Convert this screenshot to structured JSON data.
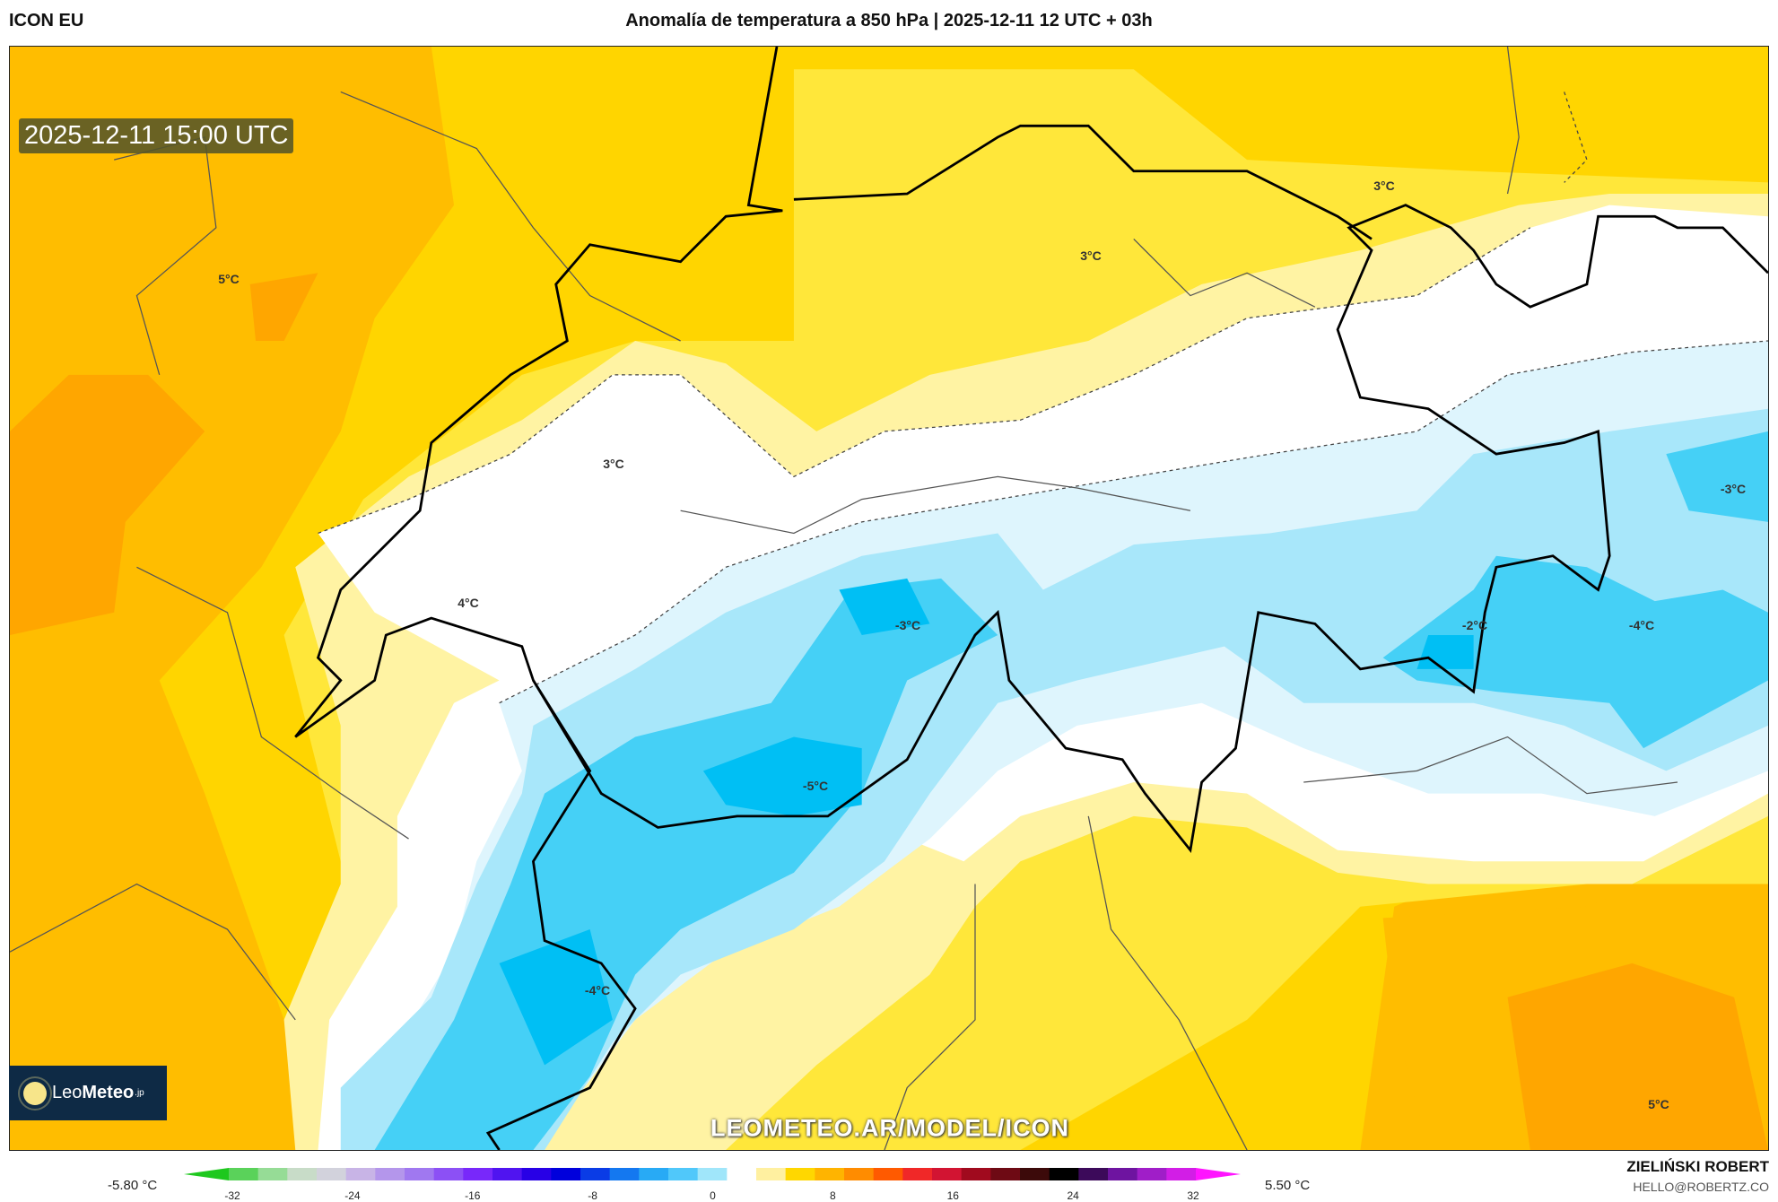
{
  "header": {
    "model": "ICON EU",
    "title": "Anomalía de temperatura a 850 hPa | 2025-12-11 12 UTC + 03h"
  },
  "map": {
    "valid_time": "2025-12-11 15:00 UTC",
    "contour_labels": [
      "5°C",
      "3°C",
      "3°C",
      "3°C",
      "4°C",
      "-3°C",
      "-3°C",
      "-2°C",
      "-4°C",
      "-5°C",
      "-4°C",
      "5°C"
    ],
    "watermark": "LEOMETEO.AR/MODEL/ICON",
    "colors": {
      "orange_deep": "#ffa600",
      "orange": "#ffbd00",
      "yellow": "#ffd500",
      "yellow_light": "#ffe73a",
      "pale_yellow": "#fff3a3",
      "white": "#ffffff",
      "pale_blue": "#def5fd",
      "light_blue": "#a8e7fa",
      "blue": "#45d0f6",
      "cyan": "#00bff4"
    }
  },
  "logo": {
    "name_light": "Leo",
    "name_bold": "Meteo",
    "suffix": ".jp"
  },
  "colorbar": {
    "min_label": "-5.80 °C",
    "max_label": "5.50 °C",
    "ticks": [
      "-32",
      "-24",
      "-16",
      "-8",
      "0",
      "8",
      "16",
      "24",
      "32"
    ],
    "range": [
      -36,
      36
    ],
    "colors": [
      "#1ec81e",
      "#5ad25a",
      "#96dc96",
      "#c8dcc8",
      "#d2d2dc",
      "#c8b4e6",
      "#b496eb",
      "#a078f0",
      "#8c50f5",
      "#7828fa",
      "#5014f0",
      "#2800e6",
      "#0000dc",
      "#0a3ce6",
      "#1478f0",
      "#28aaf5",
      "#50c8fa",
      "#a0e6fa",
      "#ffffff",
      "#fff0a0",
      "#ffd700",
      "#ffb400",
      "#ff8c00",
      "#ff5a00",
      "#f02828",
      "#d21432",
      "#a00a1e",
      "#6e0a14",
      "#3c0a0a",
      "#000000",
      "#3c0a5a",
      "#6e14a0",
      "#a01ec8",
      "#d21ee6",
      "#ff14ff"
    ]
  },
  "credits": {
    "author": "ZIELIŃSKI ROBERT",
    "email": "HELLO@ROBERTZ.CO"
  }
}
